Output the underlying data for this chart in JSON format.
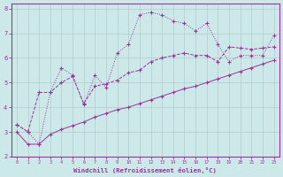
{
  "xlabel": "Windchill (Refroidissement éolien,°C)",
  "ylabel": "",
  "xlim": [
    -0.5,
    23.5
  ],
  "ylim": [
    2,
    8.2
  ],
  "xticks": [
    0,
    1,
    2,
    3,
    4,
    5,
    6,
    7,
    8,
    9,
    10,
    11,
    12,
    13,
    14,
    15,
    16,
    17,
    18,
    19,
    20,
    21,
    22,
    23
  ],
  "yticks": [
    2,
    3,
    4,
    5,
    6,
    7,
    8
  ],
  "bg_color": "#cde8e8",
  "line_color": "#993399",
  "grid_color": "#b0cccc",
  "line1_x": [
    0,
    1,
    2,
    3,
    4,
    5,
    6,
    7,
    8,
    9,
    10,
    11,
    12,
    13,
    14,
    15,
    16,
    17,
    18,
    19,
    20,
    21,
    22,
    23
  ],
  "line1_y": [
    3.3,
    3.0,
    2.5,
    4.6,
    5.6,
    5.3,
    4.1,
    5.3,
    4.8,
    6.2,
    6.55,
    7.75,
    7.85,
    7.75,
    7.5,
    7.4,
    7.1,
    7.4,
    6.55,
    5.85,
    6.1,
    6.1,
    6.1,
    6.9
  ],
  "line2_x": [
    0,
    1,
    2,
    3,
    4,
    5,
    6,
    7,
    8,
    9,
    10,
    11,
    12,
    13,
    14,
    15,
    16,
    17,
    18,
    19,
    20,
    21,
    22,
    23
  ],
  "line2_y": [
    3.3,
    3.0,
    4.6,
    4.6,
    5.0,
    5.25,
    4.15,
    4.85,
    4.95,
    5.1,
    5.4,
    5.5,
    5.85,
    6.0,
    6.1,
    6.2,
    6.1,
    6.1,
    5.85,
    6.45,
    6.4,
    6.35,
    6.4,
    6.45
  ],
  "line3_x": [
    0,
    1,
    2,
    3,
    4,
    5,
    6,
    7,
    8,
    9,
    10,
    11,
    12,
    13,
    14,
    15,
    16,
    17,
    18,
    19,
    20,
    21,
    22,
    23
  ],
  "line3_y": [
    3.0,
    2.5,
    2.5,
    2.9,
    3.1,
    3.25,
    3.4,
    3.6,
    3.75,
    3.9,
    4.0,
    4.15,
    4.3,
    4.45,
    4.6,
    4.75,
    4.85,
    5.0,
    5.15,
    5.3,
    5.45,
    5.6,
    5.75,
    5.9
  ]
}
